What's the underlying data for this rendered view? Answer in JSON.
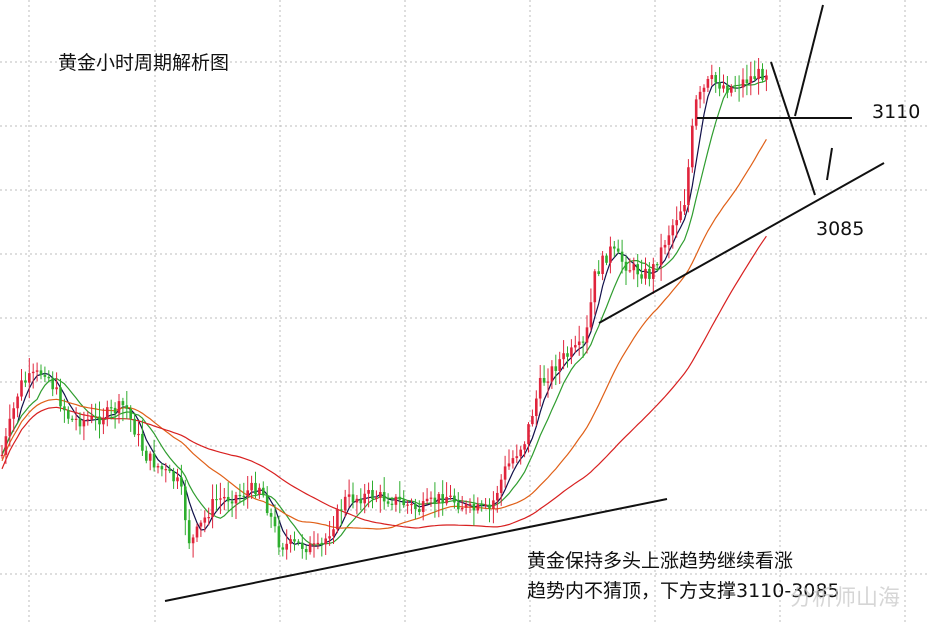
{
  "chart_data": {
    "type": "candlestick",
    "title": "黄金小时周期解析图",
    "levels": [
      {
        "label": "3110",
        "value": 3110
      },
      {
        "label": "3085",
        "value": 3085
      }
    ],
    "commentary": [
      "黄金保持多头上涨趋势继续看涨",
      "趋势内不猜顶，下方支撑3110-3085"
    ],
    "watermark": "分析师山海",
    "colors": {
      "up": "#e0243c",
      "down": "#2eae2e",
      "ma_fast": "#10104a",
      "ma_mid": "#2f9d2f",
      "ma_slow": "#e06018",
      "ma_long": "#d82020",
      "trend": "#111111"
    }
  }
}
